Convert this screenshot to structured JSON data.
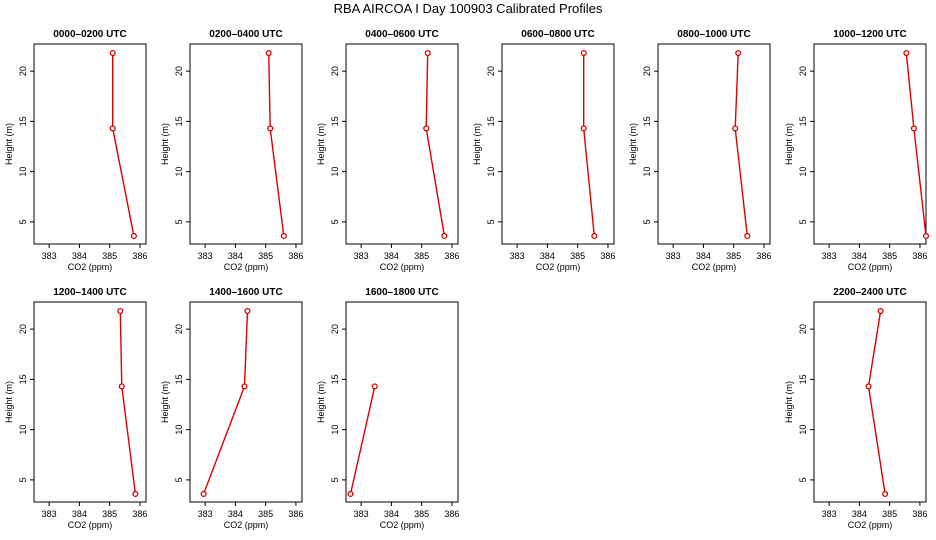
{
  "title": "RBA AIRCOA I  Day 100903  Calibrated Profiles",
  "chart_data": {
    "type": "line",
    "xlabel": "CO2 (ppm)",
    "ylabel": "Height (m)",
    "xlim": [
      382.5,
      386.2
    ],
    "ylim": [
      2.8,
      22.7
    ],
    "xticks": [
      383,
      384,
      385,
      386
    ],
    "yticks": [
      5,
      10,
      15,
      20
    ],
    "heights": [
      3.6,
      14.3,
      21.8
    ],
    "line_color": "#dd0000",
    "panels": [
      {
        "title": "0000–0200 UTC",
        "x": [
          385.8,
          385.1,
          385.1
        ],
        "y": [
          3.6,
          14.3,
          21.8
        ]
      },
      {
        "title": "0200–0400 UTC",
        "x": [
          385.6,
          385.15,
          385.1
        ],
        "y": [
          3.6,
          14.3,
          21.8
        ]
      },
      {
        "title": "0400–0600 UTC",
        "x": [
          385.75,
          385.15,
          385.2
        ],
        "y": [
          3.6,
          14.3,
          21.8
        ]
      },
      {
        "title": "0600–0800 UTC",
        "x": [
          385.55,
          385.2,
          385.2
        ],
        "y": [
          3.6,
          14.3,
          21.8
        ]
      },
      {
        "title": "0800–1000 UTC",
        "x": [
          385.45,
          385.05,
          385.15
        ],
        "y": [
          3.6,
          14.3,
          21.8
        ]
      },
      {
        "title": "1000–1200 UTC",
        "x": [
          386.2,
          385.8,
          385.55
        ],
        "y": [
          3.6,
          14.3,
          21.8
        ]
      },
      {
        "title": "1200–1400 UTC",
        "x": [
          385.85,
          385.4,
          385.35
        ],
        "y": [
          3.6,
          14.3,
          21.8
        ]
      },
      {
        "title": "1400–1600 UTC",
        "x": [
          382.95,
          384.3,
          384.4
        ],
        "y": [
          3.6,
          14.3,
          21.8
        ]
      },
      {
        "title": "1600–1800 UTC",
        "x": [
          382.65,
          383.45
        ],
        "y": [
          3.6,
          14.3
        ]
      },
      {
        "title": "2200–2400 UTC",
        "x": [
          384.85,
          384.3,
          384.7
        ],
        "y": [
          3.6,
          14.3,
          21.8
        ]
      }
    ]
  }
}
